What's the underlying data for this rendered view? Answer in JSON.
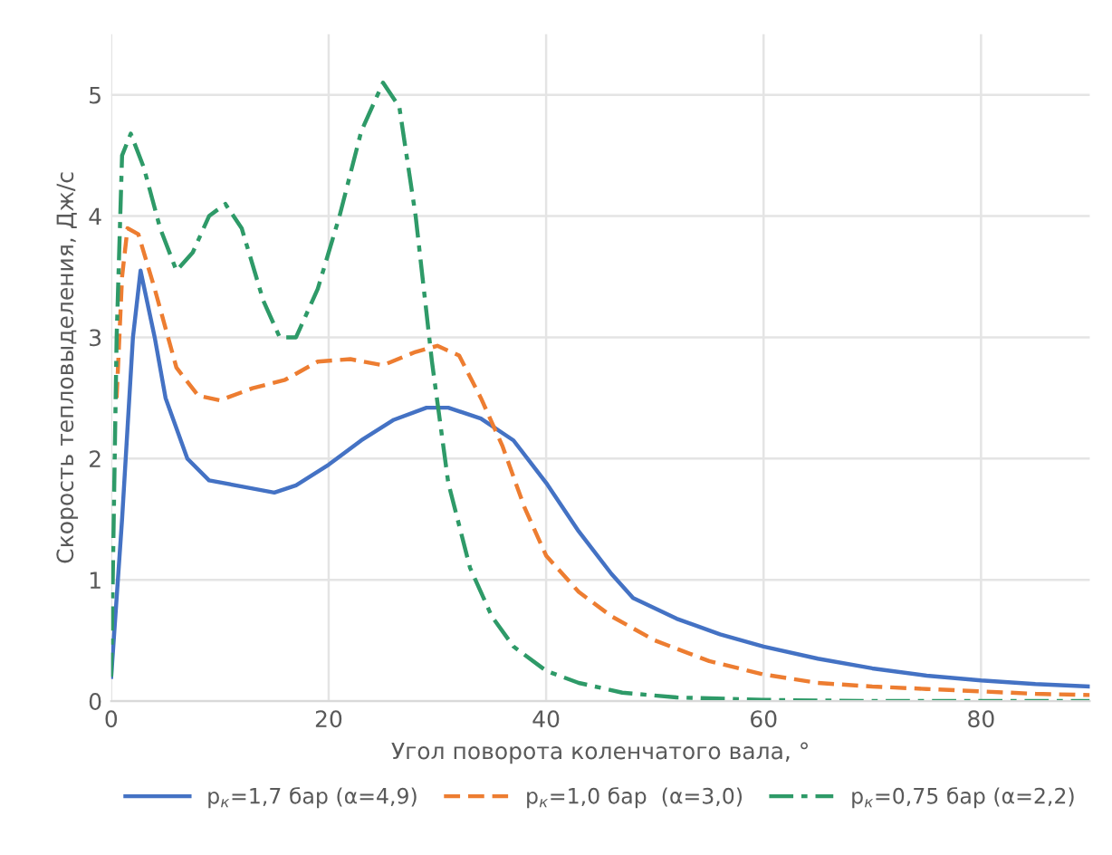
{
  "chart_data": {
    "type": "line",
    "xlabel": "Угол поворота коленчатого вала, °",
    "ylabel": "Скорость тепловыделения, Дж/с",
    "xlim": [
      0,
      90
    ],
    "xticks": [
      0,
      20,
      40,
      60,
      80
    ],
    "ylim": [
      0,
      5.5
    ],
    "yticks": [
      0,
      1,
      2,
      3,
      4,
      5
    ],
    "grid": true,
    "legend": "bottom",
    "marker": "none",
    "series": [
      {
        "name": "p$_{к}$=1,7 бар (α=4,9)",
        "color": "#4472c4",
        "line_style": "solid",
        "x": [
          0,
          1,
          2,
          2.7,
          4,
          5,
          7,
          9,
          12,
          15,
          17,
          20,
          23,
          26,
          29,
          31,
          34,
          37,
          40,
          43,
          46,
          48,
          52,
          56,
          60,
          65,
          70,
          75,
          80,
          85,
          90
        ],
        "values": [
          0.2,
          1.5,
          3.0,
          3.55,
          3.0,
          2.5,
          2.0,
          1.82,
          1.77,
          1.72,
          1.78,
          1.95,
          2.15,
          2.32,
          2.42,
          2.42,
          2.33,
          2.15,
          1.8,
          1.4,
          1.05,
          0.85,
          0.68,
          0.55,
          0.45,
          0.35,
          0.27,
          0.21,
          0.17,
          0.14,
          0.12
        ]
      },
      {
        "name": "p$_{к}$=1,0 бар  (α=3,0)",
        "color": "#ed7d31",
        "line_style": "dashed",
        "x": [
          0.5,
          1,
          1.5,
          2.5,
          4,
          6,
          8,
          10,
          13,
          16,
          19,
          22,
          25,
          28,
          30,
          32,
          34,
          36,
          38,
          40,
          43,
          46,
          50,
          55,
          60,
          65,
          70,
          75,
          80,
          85,
          90
        ],
        "values": [
          2.5,
          3.5,
          3.9,
          3.85,
          3.4,
          2.75,
          2.52,
          2.48,
          2.58,
          2.65,
          2.8,
          2.82,
          2.77,
          2.88,
          2.93,
          2.85,
          2.5,
          2.1,
          1.6,
          1.2,
          0.9,
          0.7,
          0.5,
          0.33,
          0.22,
          0.15,
          0.12,
          0.1,
          0.08,
          0.06,
          0.05
        ]
      },
      {
        "name": "p$_{к}$=0,75 бар (α=2,2)",
        "color": "#2e9a68",
        "line_style": "dashdot",
        "x": [
          0,
          0.5,
          1,
          1.8,
          3,
          4.5,
          6,
          7.5,
          9,
          10.5,
          12,
          14,
          15.5,
          17,
          19,
          21,
          23,
          25,
          26.5,
          28,
          29.5,
          31,
          33,
          35,
          37,
          40,
          43,
          47,
          52,
          60,
          70,
          80,
          90
        ],
        "values": [
          0.2,
          3.0,
          4.5,
          4.68,
          4.4,
          3.9,
          3.55,
          3.7,
          4.0,
          4.1,
          3.9,
          3.3,
          3.0,
          3.0,
          3.4,
          4.0,
          4.7,
          5.1,
          4.9,
          4.0,
          2.8,
          1.8,
          1.1,
          0.7,
          0.45,
          0.25,
          0.15,
          0.07,
          0.03,
          0.01,
          0.0,
          0.0,
          0.0
        ]
      }
    ]
  }
}
